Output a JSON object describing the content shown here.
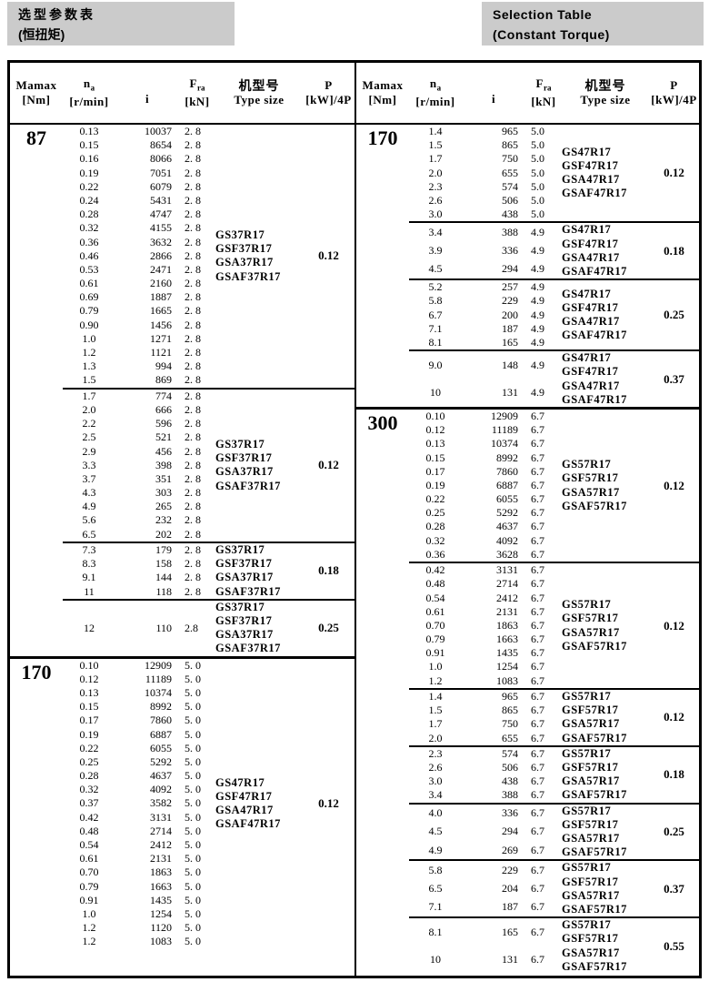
{
  "title_left": {
    "line1": "选型参数表",
    "line2": "(恒扭矩)"
  },
  "title_right": {
    "line1": "Selection Table",
    "line2": "(Constant Torque)"
  },
  "colors": {
    "title_bg": "#cbcbcb",
    "border": "#000000",
    "page_bg": "#ffffff"
  },
  "columns": {
    "mamax_main": "Mamax",
    "mamax_unit": "[Nm]",
    "na_main": "n",
    "na_sub": "a",
    "na_unit": "[r/min]",
    "i_label": "i",
    "fra_main": "F",
    "fra_sub": "ra",
    "fra_unit": "[kN]",
    "type_cn": "机型号",
    "type_en": "Type size",
    "p_main": "P",
    "p_unit": "[kW]/4P"
  },
  "left_blocks": [
    {
      "mamax": "87",
      "sections": [
        {
          "rows": [
            [
              "0.13",
              "10037",
              "2. 8"
            ],
            [
              "0.15",
              "8654",
              "2. 8"
            ],
            [
              "0.16",
              "8066",
              "2. 8"
            ],
            [
              "0.19",
              "7051",
              "2. 8"
            ],
            [
              "0.22",
              "6079",
              "2. 8"
            ],
            [
              "0.24",
              "5431",
              "2. 8"
            ],
            [
              "0.28",
              "4747",
              "2. 8"
            ],
            [
              "0.32",
              "4155",
              "2. 8"
            ],
            [
              "0.36",
              "3632",
              "2. 8"
            ],
            [
              "0.46",
              "2866",
              "2. 8"
            ],
            [
              "0.53",
              "2471",
              "2. 8"
            ],
            [
              "0.61",
              "2160",
              "2. 8"
            ],
            [
              "0.69",
              "1887",
              "2. 8"
            ],
            [
              "0.79",
              "1665",
              "2. 8"
            ],
            [
              "0.90",
              "1456",
              "2. 8"
            ],
            [
              "1.0",
              "1271",
              "2. 8"
            ],
            [
              "1.2",
              "1121",
              "2. 8"
            ],
            [
              "1.3",
              "994",
              "2. 8"
            ],
            [
              "1.5",
              "869",
              "2. 8"
            ]
          ],
          "types": [
            "GS37R17",
            "GSF37R17",
            "GSA37R17",
            "GSAF37R17"
          ],
          "p": "0.12"
        },
        {
          "rows": [
            [
              "1.7",
              "774",
              "2. 8"
            ],
            [
              "2.0",
              "666",
              "2. 8"
            ],
            [
              "2.2",
              "596",
              "2. 8"
            ],
            [
              "2.5",
              "521",
              "2. 8"
            ],
            [
              "2.9",
              "456",
              "2. 8"
            ],
            [
              "3.3",
              "398",
              "2. 8"
            ],
            [
              "3.7",
              "351",
              "2. 8"
            ],
            [
              "4.3",
              "303",
              "2. 8"
            ],
            [
              "4.9",
              "265",
              "2. 8"
            ],
            [
              "5.6",
              "232",
              "2. 8"
            ],
            [
              "6.5",
              "202",
              "2. 8"
            ]
          ],
          "types": [
            "GS37R17",
            "GSF37R17",
            "GSA37R17",
            "GSAF37R17"
          ],
          "p": "0.12"
        },
        {
          "rows": [
            [
              "7.3",
              "179",
              "2. 8"
            ],
            [
              "8.3",
              "158",
              "2. 8"
            ],
            [
              "9.1",
              "144",
              "2. 8"
            ],
            [
              "11",
              "118",
              "2. 8"
            ]
          ],
          "types": [
            "GS37R17",
            "GSF37R17",
            "GSA37R17",
            "GSAF37R17"
          ],
          "p": "0.18"
        },
        {
          "rows": [
            [
              "12",
              "110",
              "2.8"
            ]
          ],
          "types": [
            "GS37R17",
            "GSF37R17",
            "GSA37R17",
            "GSAF37R17"
          ],
          "p": "0.25",
          "lines": 4
        }
      ]
    },
    {
      "mamax": "170",
      "sections": [
        {
          "rows": [
            [
              "0.10",
              "12909",
              "5. 0"
            ],
            [
              "0.12",
              "11189",
              "5. 0"
            ],
            [
              "0.13",
              "10374",
              "5. 0"
            ],
            [
              "0.15",
              "8992",
              "5. 0"
            ],
            [
              "0.17",
              "7860",
              "5. 0"
            ],
            [
              "0.19",
              "6887",
              "5. 0"
            ],
            [
              "0.22",
              "6055",
              "5. 0"
            ],
            [
              "0.25",
              "5292",
              "5. 0"
            ],
            [
              "0.28",
              "4637",
              "5. 0"
            ],
            [
              "0.32",
              "4092",
              "5. 0"
            ],
            [
              "0.37",
              "3582",
              "5. 0"
            ],
            [
              "0.42",
              "3131",
              "5. 0"
            ],
            [
              "0.48",
              "2714",
              "5. 0"
            ],
            [
              "0.54",
              "2412",
              "5. 0"
            ],
            [
              "0.61",
              "2131",
              "5. 0"
            ],
            [
              "0.70",
              "1863",
              "5. 0"
            ],
            [
              "0.79",
              "1663",
              "5. 0"
            ],
            [
              "0.91",
              "1435",
              "5. 0"
            ],
            [
              "1.0",
              "1254",
              "5. 0"
            ],
            [
              "1.2",
              "1120",
              "5. 0"
            ],
            [
              "1.2",
              "1083",
              "5. 0"
            ]
          ],
          "types": [
            "GS47R17",
            "GSF47R17",
            "GSA47R17",
            "GSAF47R17"
          ],
          "p": "0.12"
        }
      ]
    }
  ],
  "right_blocks": [
    {
      "mamax": "170",
      "sections": [
        {
          "rows": [
            [
              "1.4",
              "965",
              "5.0"
            ],
            [
              "1.5",
              "865",
              "5.0"
            ],
            [
              "1.7",
              "750",
              "5.0"
            ],
            [
              "2.0",
              "655",
              "5.0"
            ],
            [
              "2.3",
              "574",
              "5.0"
            ],
            [
              "2.6",
              "506",
              "5.0"
            ],
            [
              "3.0",
              "438",
              "5.0"
            ]
          ],
          "types": [
            "GS47R17",
            "GSF47R17",
            "GSA47R17",
            "GSAF47R17"
          ],
          "p": "0.12"
        },
        {
          "rows": [
            [
              "3.4",
              "388",
              "4.9"
            ],
            [
              "3.9",
              "336",
              "4.9"
            ],
            [
              "4.5",
              "294",
              "4.9"
            ]
          ],
          "types": [
            "GS47R17",
            "GSF47R17",
            "GSA47R17",
            "GSAF47R17"
          ],
          "p": "0.18",
          "lines": 4
        },
        {
          "rows": [
            [
              "5.2",
              "257",
              "4.9"
            ],
            [
              "5.8",
              "229",
              "4.9"
            ],
            [
              "6.7",
              "200",
              "4.9"
            ],
            [
              "7.1",
              "187",
              "4.9"
            ],
            [
              "8.1",
              "165",
              "4.9"
            ]
          ],
          "types": [
            "GS47R17",
            "GSF47R17",
            "GSA47R17",
            "GSAF47R17"
          ],
          "p": "0.25"
        },
        {
          "rows": [
            [
              "9.0",
              "148",
              "4.9"
            ],
            [
              "10",
              "131",
              "4.9"
            ]
          ],
          "types": [
            "GS47R17",
            "GSF47R17",
            "GSA47R17",
            "GSAF47R17"
          ],
          "p": "0.37",
          "lines": 4
        }
      ]
    },
    {
      "mamax": "300",
      "sections": [
        {
          "rows": [
            [
              "0.10",
              "12909",
              "6.7"
            ],
            [
              "0.12",
              "11189",
              "6.7"
            ],
            [
              "0.13",
              "10374",
              "6.7"
            ],
            [
              "0.15",
              "8992",
              "6.7"
            ],
            [
              "0.17",
              "7860",
              "6.7"
            ],
            [
              "0.19",
              "6887",
              "6.7"
            ],
            [
              "0.22",
              "6055",
              "6.7"
            ],
            [
              "0.25",
              "5292",
              "6.7"
            ],
            [
              "0.28",
              "4637",
              "6.7"
            ],
            [
              "0.32",
              "4092",
              "6.7"
            ],
            [
              "0.36",
              "3628",
              "6.7"
            ]
          ],
          "types": [
            "GS57R17",
            "GSF57R17",
            "GSA57R17",
            "GSAF57R17"
          ],
          "p": "0.12"
        },
        {
          "rows": [
            [
              "0.42",
              "3131",
              "6.7"
            ],
            [
              "0.48",
              "2714",
              "6.7"
            ],
            [
              "0.54",
              "2412",
              "6.7"
            ],
            [
              "0.61",
              "2131",
              "6.7"
            ],
            [
              "0.70",
              "1863",
              "6.7"
            ],
            [
              "0.79",
              "1663",
              "6.7"
            ],
            [
              "0.91",
              "1435",
              "6.7"
            ],
            [
              "1.0",
              "1254",
              "6.7"
            ],
            [
              "1.2",
              "1083",
              "6.7"
            ]
          ],
          "types": [
            "GS57R17",
            "GSF57R17",
            "GSA57R17",
            "GSAF57R17"
          ],
          "p": "0.12"
        },
        {
          "rows": [
            [
              "1.4",
              "965",
              "6.7"
            ],
            [
              "1.5",
              "865",
              "6.7"
            ],
            [
              "1.7",
              "750",
              "6.7"
            ],
            [
              "2.0",
              "655",
              "6.7"
            ]
          ],
          "types": [
            "GS57R17",
            "GSF57R17",
            "GSA57R17",
            "GSAF57R17"
          ],
          "p": "0.12"
        },
        {
          "rows": [
            [
              "2.3",
              "574",
              "6.7"
            ],
            [
              "2.6",
              "506",
              "6.7"
            ],
            [
              "3.0",
              "438",
              "6.7"
            ],
            [
              "3.4",
              "388",
              "6.7"
            ]
          ],
          "types": [
            "GS57R17",
            "GSF57R17",
            "GSA57R17",
            "GSAF57R17"
          ],
          "p": "0.18"
        },
        {
          "rows": [
            [
              "4.0",
              "336",
              "6.7"
            ],
            [
              "4.5",
              "294",
              "6.7"
            ],
            [
              "4.9",
              "269",
              "6.7"
            ]
          ],
          "types": [
            "GS57R17",
            "GSF57R17",
            "GSA57R17",
            "GSAF57R17"
          ],
          "p": "0.25",
          "lines": 4
        },
        {
          "rows": [
            [
              "5.8",
              "229",
              "6.7"
            ],
            [
              "6.5",
              "204",
              "6.7"
            ],
            [
              "7.1",
              "187",
              "6.7"
            ]
          ],
          "types": [
            "GS57R17",
            "GSF57R17",
            "GSA57R17",
            "GSAF57R17"
          ],
          "p": "0.37",
          "lines": 4
        },
        {
          "rows": [
            [
              "8.1",
              "165",
              "6.7"
            ],
            [
              "10",
              "131",
              "6.7"
            ]
          ],
          "types": [
            "GS57R17",
            "GSF57R17",
            "GSA57R17",
            "GSAF57R17"
          ],
          "p": "0.55",
          "lines": 4
        }
      ]
    }
  ]
}
